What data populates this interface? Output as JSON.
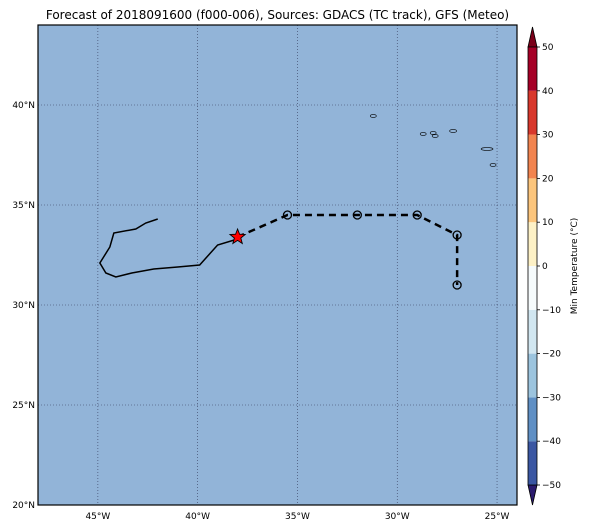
{
  "title": "Forecast of 2018091600 (f000-006), Sources: GDACS (TC track), GFS (Meteo)",
  "map": {
    "lon_range": [
      -48,
      -24
    ],
    "lat_range": [
      20,
      44
    ],
    "ocean_color": "#92b4d8",
    "grid": "dotted",
    "x_ticks": [
      {
        "value": -45,
        "label": "45°W"
      },
      {
        "value": -40,
        "label": "40°W"
      },
      {
        "value": -35,
        "label": "35°W"
      },
      {
        "value": -30,
        "label": "30°W"
      },
      {
        "value": -25,
        "label": "25°W"
      }
    ],
    "y_ticks": [
      {
        "value": 20,
        "label": "20°N"
      },
      {
        "value": 25,
        "label": "25°N"
      },
      {
        "value": 30,
        "label": "30°N"
      },
      {
        "value": 35,
        "label": "35°N"
      },
      {
        "value": 40,
        "label": "40°N"
      }
    ]
  },
  "chart_data": {
    "type": "line",
    "title": "Forecast of 2018091600 (f000-006), Sources: GDACS (TC track), GFS (Meteo)",
    "past_track": [
      {
        "lon": -42.0,
        "lat": 34.3
      },
      {
        "lon": -42.6,
        "lat": 34.1
      },
      {
        "lon": -43.1,
        "lat": 33.8
      },
      {
        "lon": -44.2,
        "lat": 33.6
      },
      {
        "lon": -44.4,
        "lat": 32.9
      },
      {
        "lon": -44.9,
        "lat": 32.1
      },
      {
        "lon": -44.6,
        "lat": 31.6
      },
      {
        "lon": -44.1,
        "lat": 31.4
      },
      {
        "lon": -43.3,
        "lat": 31.6
      },
      {
        "lon": -42.2,
        "lat": 31.8
      },
      {
        "lon": -41.0,
        "lat": 31.9
      },
      {
        "lon": -39.9,
        "lat": 32.0
      },
      {
        "lon": -39.0,
        "lat": 33.0
      },
      {
        "lon": -38.0,
        "lat": 33.3
      }
    ],
    "current_position": {
      "lon": -38.0,
      "lat": 33.4,
      "marker": "star",
      "color": "#ff0000"
    },
    "forecast_track": [
      {
        "lon": -38.0,
        "lat": 33.4
      },
      {
        "lon": -35.5,
        "lat": 34.5
      },
      {
        "lon": -32.0,
        "lat": 34.5
      },
      {
        "lon": -29.0,
        "lat": 34.5
      },
      {
        "lon": -27.0,
        "lat": 33.5
      },
      {
        "lon": -27.0,
        "lat": 31.0
      }
    ],
    "islands": [
      {
        "lon": -31.2,
        "lat": 39.45
      },
      {
        "lon": -28.2,
        "lat": 38.6
      },
      {
        "lon": -28.7,
        "lat": 38.55
      },
      {
        "lon": -28.1,
        "lat": 38.45
      },
      {
        "lon": -27.2,
        "lat": 38.7
      },
      {
        "lon": -25.5,
        "lat": 37.8
      },
      {
        "lon": -25.2,
        "lat": 37.0
      }
    ]
  },
  "colorbar": {
    "label": "Min Temperature (°C)",
    "min": -50,
    "max": 50,
    "ticks": [
      {
        "value": 50,
        "label": "50"
      },
      {
        "value": 40,
        "label": "40"
      },
      {
        "value": 30,
        "label": "30"
      },
      {
        "value": 20,
        "label": "20"
      },
      {
        "value": 10,
        "label": "10"
      },
      {
        "value": 0,
        "label": "0"
      },
      {
        "value": -10,
        "label": "−10"
      },
      {
        "value": -20,
        "label": "−20"
      },
      {
        "value": -30,
        "label": "−30"
      },
      {
        "value": -40,
        "label": "−40"
      },
      {
        "value": -50,
        "label": "−50"
      }
    ],
    "colors": [
      "#2b1b6e",
      "#3a56a2",
      "#5f8fc4",
      "#9cc4de",
      "#d1e6f0",
      "#f6fbfc",
      "#fdf1c6",
      "#fcc57c",
      "#f2844f",
      "#d8382c",
      "#a50026",
      "#7a0019"
    ]
  }
}
